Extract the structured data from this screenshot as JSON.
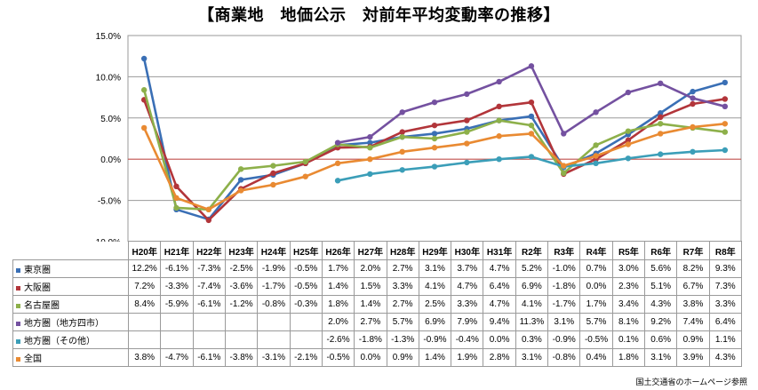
{
  "chart_data": {
    "type": "line",
    "title": "【商業地　地価公示　対前年平均変動率の推移】",
    "categories": [
      "H20年",
      "H21年",
      "H22年",
      "H23年",
      "H24年",
      "H25年",
      "H26年",
      "H27年",
      "H28年",
      "H29年",
      "H30年",
      "H31年",
      "R2年",
      "R3年",
      "R4年",
      "R5年",
      "R6年",
      "R7年",
      "R8年"
    ],
    "y_ticks": [
      "15.0%",
      "10.0%",
      "5.0%",
      "0.0%",
      "-5.0%",
      "-10.0%"
    ],
    "ylim": [
      -10,
      15
    ],
    "series": [
      {
        "name": "東京圏",
        "color": "#3a6fb5",
        "values": [
          12.2,
          -6.1,
          -7.3,
          -2.5,
          -1.9,
          -0.5,
          1.7,
          2.0,
          2.7,
          3.1,
          3.7,
          4.7,
          5.2,
          -1.0,
          0.7,
          3.0,
          5.6,
          8.2,
          9.3
        ],
        "labels": [
          "12.2%",
          "-6.1%",
          "-7.3%",
          "-2.5%",
          "-1.9%",
          "-0.5%",
          "1.7%",
          "2.0%",
          "2.7%",
          "3.1%",
          "3.7%",
          "4.7%",
          "5.2%",
          "-1.0%",
          "0.7%",
          "3.0%",
          "5.6%",
          "8.2%",
          "9.3%"
        ]
      },
      {
        "name": "大阪圏",
        "color": "#b2353a",
        "values": [
          7.2,
          -3.3,
          -7.4,
          -3.6,
          -1.7,
          -0.5,
          1.4,
          1.5,
          3.3,
          4.1,
          4.7,
          6.4,
          6.9,
          -1.8,
          0.0,
          2.3,
          5.1,
          6.7,
          7.3
        ],
        "labels": [
          "7.2%",
          "-3.3%",
          "-7.4%",
          "-3.6%",
          "-1.7%",
          "-0.5%",
          "1.4%",
          "1.5%",
          "3.3%",
          "4.1%",
          "4.7%",
          "6.4%",
          "6.9%",
          "-1.8%",
          "0.0%",
          "2.3%",
          "5.1%",
          "6.7%",
          "7.3%"
        ]
      },
      {
        "name": "名古屋圏",
        "color": "#8db04a",
        "values": [
          8.4,
          -5.9,
          -6.1,
          -1.2,
          -0.8,
          -0.3,
          1.8,
          1.4,
          2.7,
          2.5,
          3.3,
          4.7,
          4.1,
          -1.7,
          1.7,
          3.4,
          4.3,
          3.8,
          3.3
        ],
        "labels": [
          "8.4%",
          "-5.9%",
          "-6.1%",
          "-1.2%",
          "-0.8%",
          "-0.3%",
          "1.8%",
          "1.4%",
          "2.7%",
          "2.5%",
          "3.3%",
          "4.7%",
          "4.1%",
          "-1.7%",
          "1.7%",
          "3.4%",
          "4.3%",
          "3.8%",
          "3.3%"
        ]
      },
      {
        "name": "地方圏（地方四市）",
        "color": "#7451a0",
        "values": [
          null,
          null,
          null,
          null,
          null,
          null,
          2.0,
          2.7,
          5.7,
          6.9,
          7.9,
          9.4,
          11.3,
          3.1,
          5.7,
          8.1,
          9.2,
          7.4,
          6.4
        ],
        "labels": [
          "",
          "",
          "",
          "",
          "",
          "",
          "2.0%",
          "2.7%",
          "5.7%",
          "6.9%",
          "7.9%",
          "9.4%",
          "11.3%",
          "3.1%",
          "5.7%",
          "8.1%",
          "9.2%",
          "7.4%",
          "6.4%"
        ]
      },
      {
        "name": "地方圏（その他）",
        "color": "#3b9eb8",
        "values": [
          null,
          null,
          null,
          null,
          null,
          null,
          -2.6,
          -1.8,
          -1.3,
          -0.9,
          -0.4,
          0.0,
          0.3,
          -0.9,
          -0.5,
          0.1,
          0.6,
          0.9,
          1.1
        ],
        "labels": [
          "",
          "",
          "",
          "",
          "",
          "",
          "-2.6%",
          "-1.8%",
          "-1.3%",
          "-0.9%",
          "-0.4%",
          "0.0%",
          "0.3%",
          "-0.9%",
          "-0.5%",
          "0.1%",
          "0.6%",
          "0.9%",
          "1.1%"
        ]
      },
      {
        "name": "全国",
        "color": "#e98a32",
        "values": [
          3.8,
          -4.7,
          -6.1,
          -3.8,
          -3.1,
          -2.1,
          -0.5,
          0.0,
          0.9,
          1.4,
          1.9,
          2.8,
          3.1,
          -0.8,
          0.4,
          1.8,
          3.1,
          3.9,
          4.3
        ],
        "labels": [
          "3.8%",
          "-4.7%",
          "-6.1%",
          "-3.8%",
          "-3.1%",
          "-2.1%",
          "-0.5%",
          "0.0%",
          "0.9%",
          "1.4%",
          "1.9%",
          "2.8%",
          "3.1%",
          "-0.8%",
          "0.4%",
          "1.8%",
          "3.1%",
          "3.9%",
          "4.3%"
        ]
      }
    ],
    "zero_line_color": "#c0504d",
    "grid": true
  },
  "source_note": "国土交通省のホームページ参照"
}
